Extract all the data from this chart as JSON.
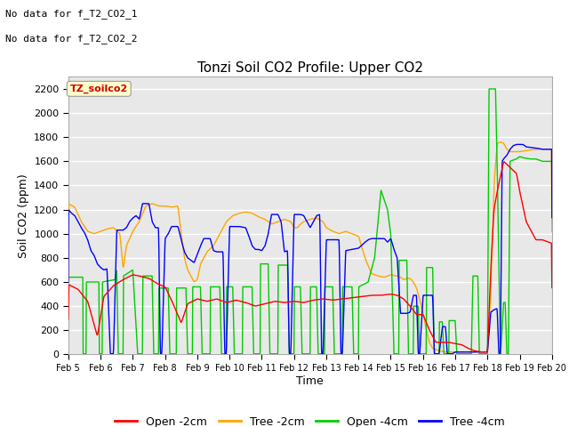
{
  "title": "Tonzi Soil CO2 Profile: Upper CO2",
  "ylabel": "Soil CO2 (ppm)",
  "xlabel": "Time",
  "no_data_text": [
    "No data for f_T2_CO2_1",
    "No data for f_T2_CO2_2"
  ],
  "legend_label": "TZ_soilco2",
  "ylim": [
    0,
    2300
  ],
  "yticks": [
    0,
    200,
    400,
    600,
    800,
    1000,
    1200,
    1400,
    1600,
    1800,
    2000,
    2200
  ],
  "colors": {
    "open_2cm": "#FF0000",
    "tree_2cm": "#FFA500",
    "open_4cm": "#00CC00",
    "tree_4cm": "#0000FF"
  },
  "legend_entries": [
    "Open -2cm",
    "Tree -2cm",
    "Open -4cm",
    "Tree -4cm"
  ],
  "bg_color": "#E8E8E8",
  "grid_color": "#FFFFFF",
  "x_start": 5.0,
  "x_end": 20.0,
  "xtick_labels": [
    "Feb 5",
    "Feb 6",
    "Feb 7",
    "Feb 8",
    "Feb 9",
    "Feb 10",
    "Feb 11",
    "Feb 12",
    "Feb 13",
    "Feb 14",
    "Feb 15",
    "Feb 16",
    "Feb 17",
    "Feb 18",
    "Feb 19",
    "Feb 20"
  ],
  "xtick_positions": [
    5,
    6,
    7,
    8,
    9,
    10,
    11,
    12,
    13,
    14,
    15,
    16,
    17,
    18,
    19,
    20
  ]
}
